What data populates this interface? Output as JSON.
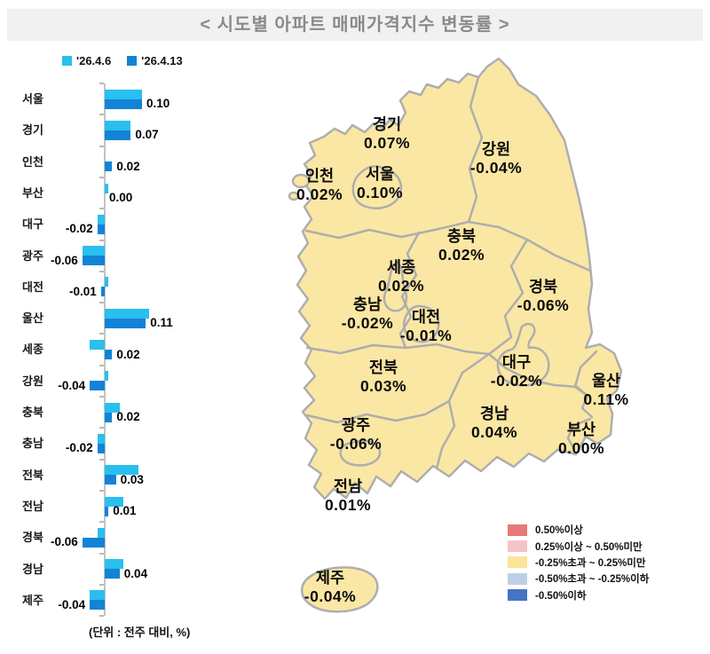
{
  "title": "<  시도별  아파트  매매가격지수  변동률  >",
  "chart_data": {
    "type": "bar",
    "orientation": "horizontal",
    "title": "시도별 아파트 매매가격지수 변동률",
    "unit_note": "(단위 : 전주 대비, %)",
    "categories": [
      "서울",
      "경기",
      "인천",
      "부산",
      "대구",
      "광주",
      "대전",
      "울산",
      "세종",
      "강원",
      "충북",
      "충남",
      "전북",
      "전남",
      "경북",
      "경남",
      "제주"
    ],
    "series": [
      {
        "name": "'26.4.6",
        "color": "#29bfef",
        "values": [
          0.1,
          0.07,
          0.0,
          0.01,
          -0.02,
          -0.06,
          0.01,
          0.12,
          -0.04,
          0.01,
          0.04,
          -0.02,
          0.09,
          0.05,
          -0.02,
          0.05,
          -0.04
        ],
        "values_estimated_from_bar_lengths": true
      },
      {
        "name": "'26.4.13",
        "color": "#1283d6",
        "values": [
          0.1,
          0.07,
          0.02,
          0.0,
          -0.02,
          -0.06,
          -0.01,
          0.11,
          0.02,
          -0.04,
          0.02,
          -0.02,
          0.03,
          0.01,
          -0.06,
          0.04,
          -0.04
        ]
      }
    ],
    "value_labels_series": "'26.4.13",
    "xlim": [
      -0.08,
      0.14
    ],
    "grid": false,
    "legend_position": "top-left"
  },
  "map": {
    "fill_color": "#fbe7a4",
    "border_color": "#aeaeae",
    "regions": [
      {
        "name": "경기",
        "value": "0.07%"
      },
      {
        "name": "강원",
        "value": "-0.04%"
      },
      {
        "name": "인천",
        "value": "0.02%"
      },
      {
        "name": "서울",
        "value": "0.10%"
      },
      {
        "name": "충북",
        "value": "0.02%"
      },
      {
        "name": "세종",
        "value": "0.02%"
      },
      {
        "name": "경북",
        "value": "-0.06%"
      },
      {
        "name": "충남",
        "value": "-0.02%"
      },
      {
        "name": "대전",
        "value": "-0.01%"
      },
      {
        "name": "전북",
        "value": "0.03%"
      },
      {
        "name": "대구",
        "value": "-0.02%"
      },
      {
        "name": "울산",
        "value": "0.11%"
      },
      {
        "name": "광주",
        "value": "-0.06%"
      },
      {
        "name": "경남",
        "value": "0.04%"
      },
      {
        "name": "부산",
        "value": "0.00%"
      },
      {
        "name": "전남",
        "value": "0.01%"
      },
      {
        "name": "제주",
        "value": "-0.04%"
      }
    ],
    "legend": [
      {
        "label": "0.50%이상",
        "color": "#e97878"
      },
      {
        "label": "0.25%이상 ~ 0.50%미만",
        "color": "#f4c3c7"
      },
      {
        "label": "-0.25%초과 ~ 0.25%미만",
        "color": "#fce498"
      },
      {
        "label": "-0.50%초과 ~ -0.25%이하",
        "color": "#bfcee9"
      },
      {
        "label": "-0.50%이하",
        "color": "#4674c4"
      }
    ]
  }
}
